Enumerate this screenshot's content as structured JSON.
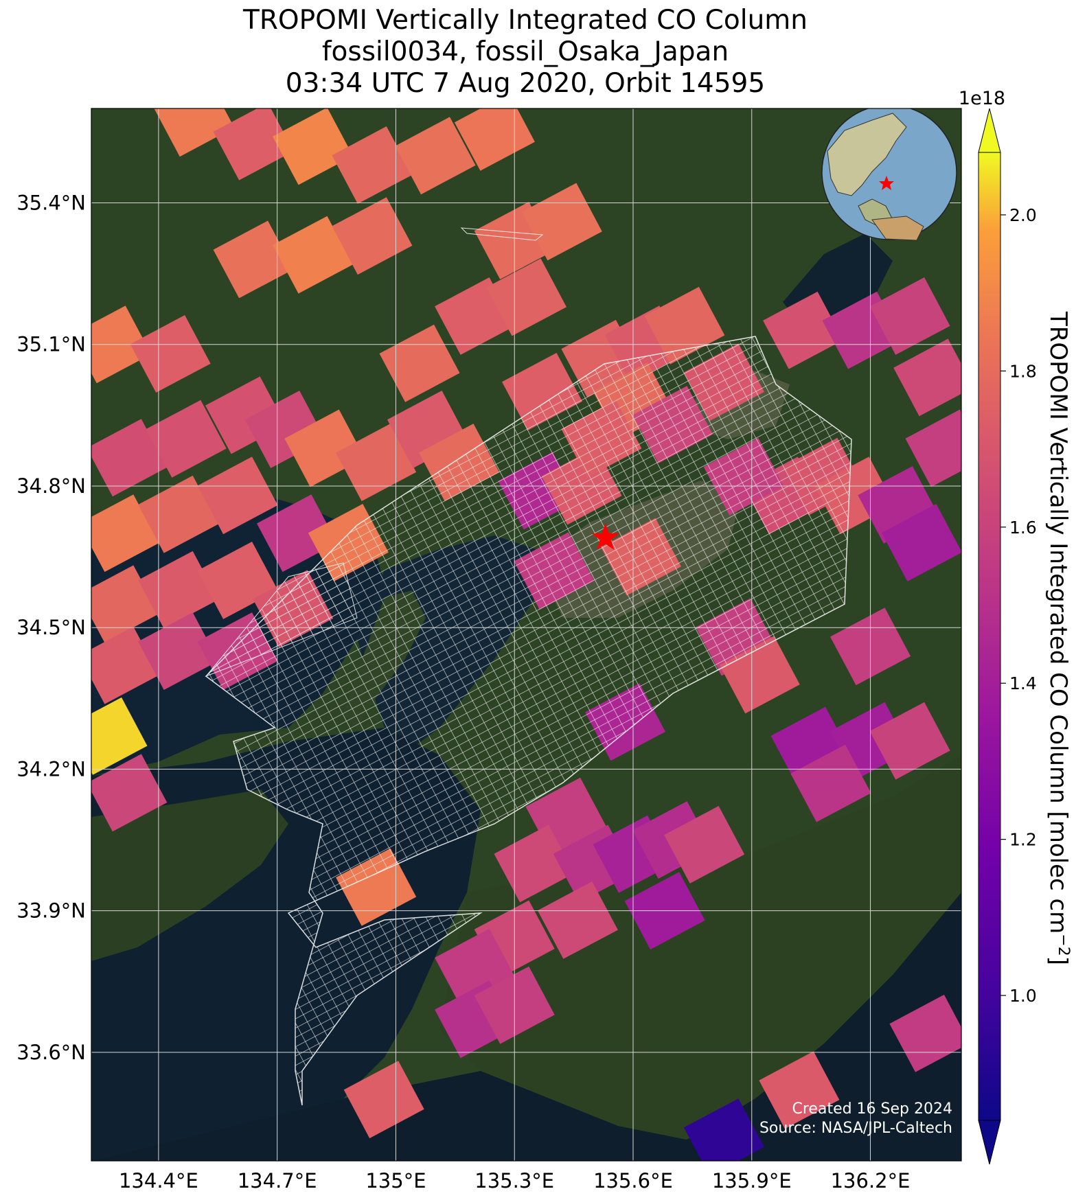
{
  "title": {
    "line1": "TROPOMI Vertically Integrated CO Column",
    "line2": "fossil0034, fossil_Osaka_Japan",
    "line3": "03:34 UTC 7 Aug 2020, Orbit 14595"
  },
  "map": {
    "lat_range": [
      33.37,
      35.6
    ],
    "lon_range": [
      134.23,
      136.43
    ],
    "lat_ticks": [
      "35.4°N",
      "35.1°N",
      "34.8°N",
      "34.5°N",
      "34.2°N",
      "33.9°N",
      "33.6°N"
    ],
    "lon_ticks": [
      "134.4°E",
      "134.7°E",
      "135°E",
      "135.3°E",
      "135.6°E",
      "135.9°E",
      "136.2°E"
    ],
    "target_marker": {
      "label": "red-star",
      "lat": 34.69,
      "lon": 135.53
    },
    "basemap": "satellite imagery",
    "overlay": "OCO-3 footprint grid (white outlines)"
  },
  "colorbar": {
    "label": "TROPOMI Vertically Integrated CO Column [molec cm",
    "label_sup": "−2",
    "label_end": "]",
    "exponent": "1e18",
    "ticks": [
      "1.0",
      "1.2",
      "1.4",
      "1.6",
      "1.8",
      "2.0"
    ],
    "range": [
      0.84,
      2.08
    ],
    "colormap": "plasma",
    "extend": "both"
  },
  "credits": {
    "created": "Created 16 Sep 2024",
    "source": "Source: NASA/JPL-Caltech"
  },
  "colors": {
    "land": "#2d4424",
    "water": "#0f1f2e",
    "star": "#ff0000"
  }
}
